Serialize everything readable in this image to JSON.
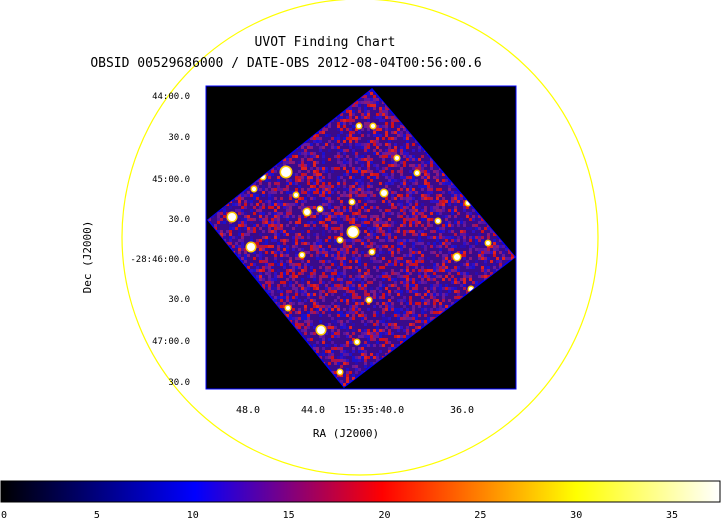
{
  "chart_data": {
    "type": "heatmap",
    "title": "UVOT Finding Chart",
    "subtitle": "OBSID 00529686000 / DATE-OBS 2012-08-04T00:56:00.6",
    "xlabel": "RA (J2000)",
    "ylabel": "Dec (J2000)",
    "x_tick_labels": [
      "48.0",
      "44.0",
      "15:35:40.0",
      "36.0"
    ],
    "y_tick_labels": [
      "44:00.0",
      "30.0",
      "45:00.0",
      "30.0",
      "-28:46:00.0",
      "30.0",
      "47:00.0",
      "30.0"
    ],
    "colorbar": {
      "ticks": [
        0,
        5,
        10,
        15,
        20,
        25,
        30,
        35
      ],
      "range": [
        0,
        37.5
      ],
      "colors": [
        "#000000",
        "#0000ff",
        "#ff0000",
        "#ffff00",
        "#ffffff"
      ]
    },
    "circle_color": "#ffff00",
    "frame_color": "#0000ff"
  }
}
